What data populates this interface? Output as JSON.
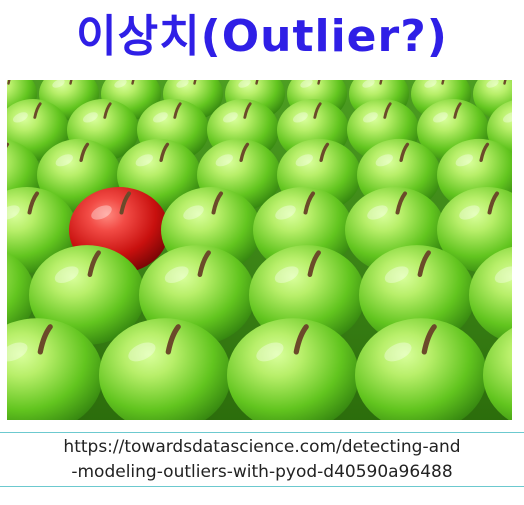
{
  "title": "이상치(Outlier?)",
  "image": {
    "subject": "red-apple-among-green-apples",
    "colors": {
      "green_light": "#b8ef6a",
      "green_mid": "#62c51f",
      "green_dark": "#2f7d0e",
      "red_light": "#f24b45",
      "red_mid": "#c8100e",
      "red_dark": "#6e0404",
      "stem": "#6b4a2a"
    }
  },
  "rotate_control": {
    "icon": "rotate-icon"
  },
  "caption": {
    "line1": "https://towardsdatascience.com/detecting-and",
    "line2": "-modeling-outliers-with-pyod-d40590a96488"
  }
}
